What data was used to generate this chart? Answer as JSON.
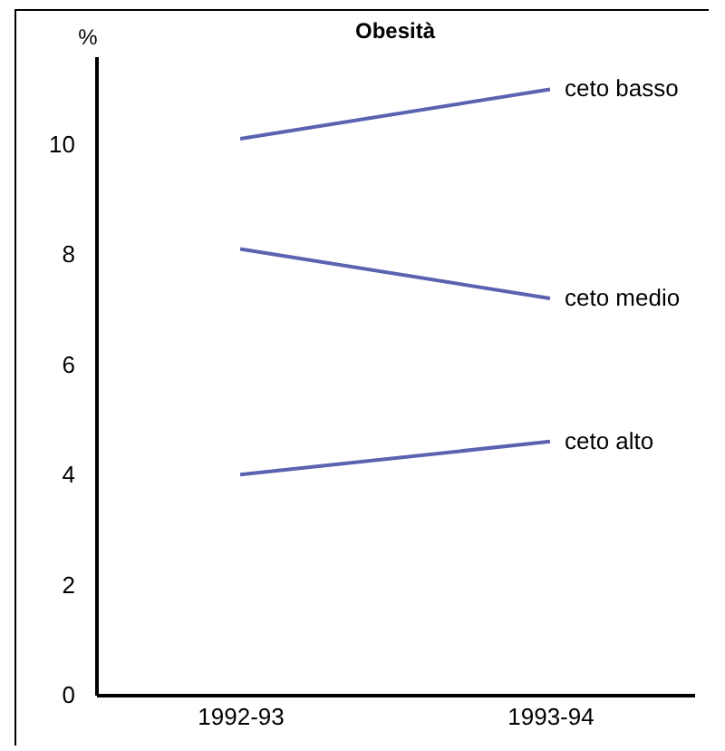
{
  "chart_data": {
    "type": "line",
    "title": "Obesità",
    "ylabel": "%",
    "categories": [
      "1992-93",
      "1993-94"
    ],
    "ylim": [
      0,
      11.6
    ],
    "yticks": [
      0,
      2,
      4,
      6,
      8,
      10
    ],
    "grid": false,
    "legend": false,
    "marker": "none",
    "line_style": "solid",
    "series": [
      {
        "name": "ceto basso",
        "color": "#5b62b0",
        "values": [
          10.1,
          11.0
        ]
      },
      {
        "name": "ceto medio",
        "color": "#5b62b0",
        "values": [
          8.1,
          7.2
        ]
      },
      {
        "name": "ceto alto",
        "color": "#5b62b0",
        "values": [
          4.0,
          4.6
        ]
      }
    ]
  }
}
